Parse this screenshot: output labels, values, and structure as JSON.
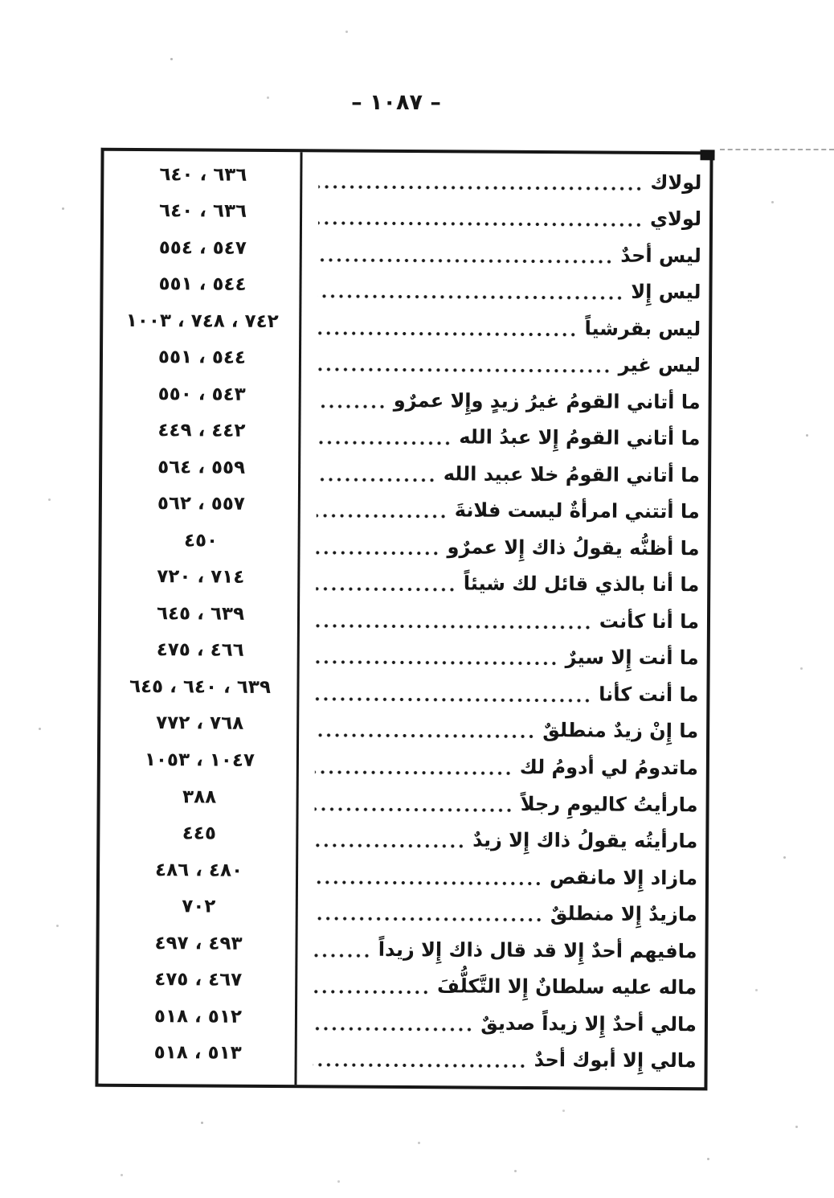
{
  "page_header": {
    "page_number": "– ١٠٨٧ –"
  },
  "colors": {
    "ink": "#171717",
    "paper": "#ffffff"
  },
  "index": {
    "rows": [
      {
        "entry": "لولاك",
        "pages": "٦٣٦ ، ٦٤٠"
      },
      {
        "entry": "لولاي",
        "pages": "٦٣٦ ، ٦٤٠"
      },
      {
        "entry": "ليس أحدٌ",
        "pages": "٥٤٧ ، ٥٥٤"
      },
      {
        "entry": "ليس إِلا",
        "pages": "٥٤٤ ، ٥٥١"
      },
      {
        "entry": "ليس بقرشياً",
        "pages": "٧٤٢ ، ٧٤٨ ، ١٠٠٣"
      },
      {
        "entry": "ليس غير",
        "pages": "٥٤٤ ، ٥٥١"
      },
      {
        "entry": "ما أتاني القومُ غيرُ زيدٍ وإِلا عمرٌو",
        "pages": "٥٤٣ ، ٥٥٠"
      },
      {
        "entry": "ما أتاني القومُ إِلا عبدُ الله",
        "pages": "٤٤٢ ، ٤٤٩"
      },
      {
        "entry": "ما أتاني القومُ خلا عبيد الله",
        "pages": "٥٥٩ ، ٥٦٤"
      },
      {
        "entry": "ما أتتني امرأةٌ ليست فلانةَ",
        "pages": "٥٥٧ ، ٥٦٢"
      },
      {
        "entry": "ما أظنُّه يقولُ ذاك إِلا عمرٌو",
        "pages": "٤٥٠"
      },
      {
        "entry": "ما أنا بالذي قائل لك شيئاً",
        "pages": "٧١٤ ، ٧٢٠"
      },
      {
        "entry": "ما أنا كأنت",
        "pages": "٦٣٩ ، ٦٤٥"
      },
      {
        "entry": "ما أنت إِلا سيرٌ",
        "pages": "٤٦٦ ، ٤٧٥"
      },
      {
        "entry": "ما أنت كأنا",
        "pages": "٦٣٩ ، ٦٤٠ ، ٦٤٥"
      },
      {
        "entry": "ما إِنْ زيدٌ منطلقٌ",
        "pages": "٧٦٨ ، ٧٧٢"
      },
      {
        "entry": "ماتدومُ لي أدومُ لك",
        "pages": "١٠٤٧ ، ١٠٥٣"
      },
      {
        "entry": "مارأيتُ كاليومِ رجلاً",
        "pages": "٣٨٨"
      },
      {
        "entry": "مارأيتُه يقولُ ذاك إِلا زيدٌ",
        "pages": "٤٤٥"
      },
      {
        "entry": "مازاد إِلا مانقص",
        "pages": "٤٨٠ ، ٤٨٦"
      },
      {
        "entry": "مازيدٌ إِلا منطلقٌ",
        "pages": "٧٠٢"
      },
      {
        "entry": "مافيهم أحدٌ إِلا قد قال ذاك إِلا زيداً",
        "pages": "٤٩٣ ، ٤٩٧"
      },
      {
        "entry": "ماله عليه سلطانٌ إِلا التَّكلُّفَ",
        "pages": "٤٦٧ ، ٤٧٥"
      },
      {
        "entry": "مالي أحدٌ إِلا زيداً صديقٌ",
        "pages": "٥١٢ ، ٥١٨"
      },
      {
        "entry": "مالي إِلا أبوك أحدٌ",
        "pages": "٥١٣ ، ٥١٨"
      }
    ]
  }
}
